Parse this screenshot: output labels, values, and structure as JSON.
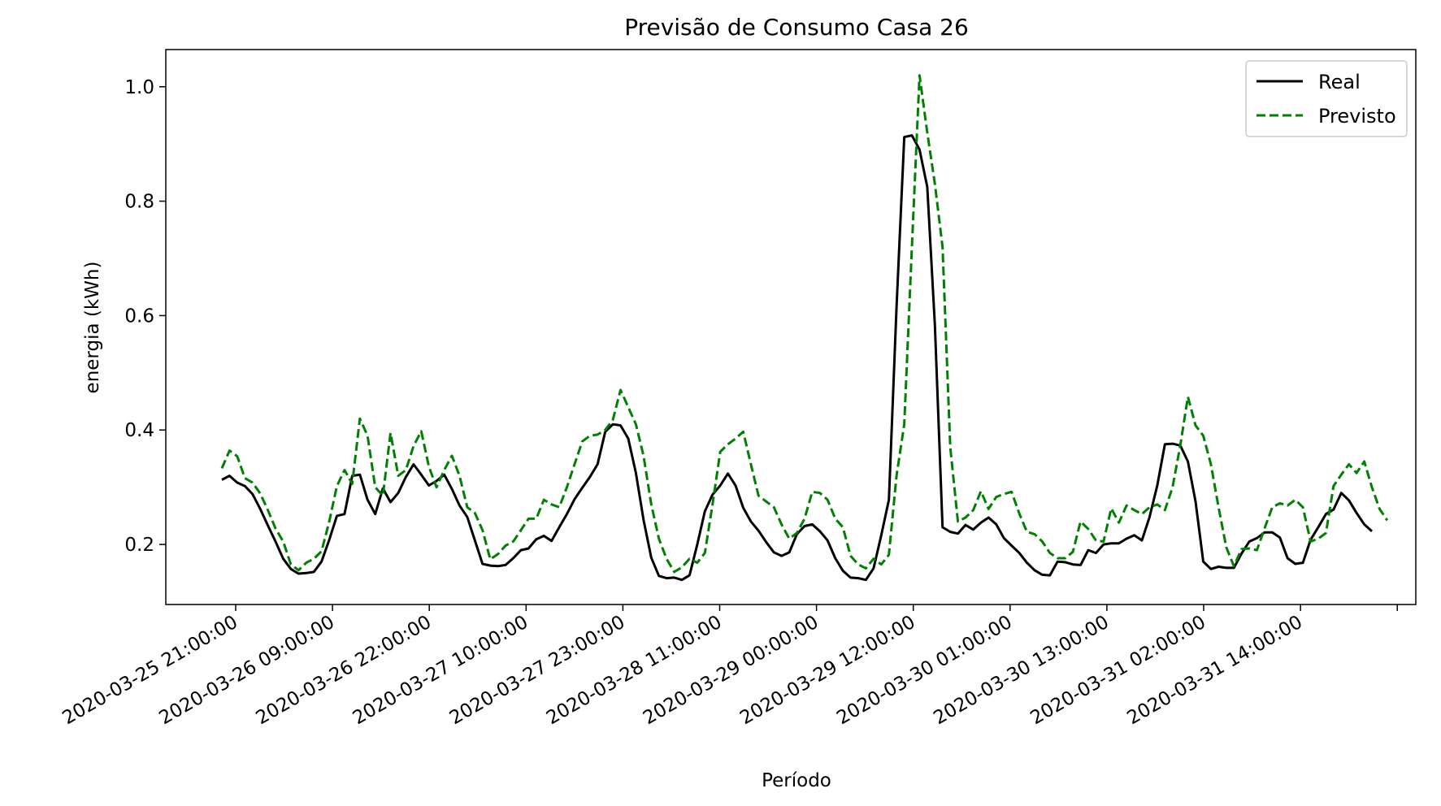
{
  "chart_data": {
    "type": "line",
    "title": "Previsão de Consumo Casa 26",
    "xlabel": "Período",
    "ylabel": "energia (kWh)",
    "ylim": [
      0.095,
      1.065
    ],
    "yticks": [
      0.2,
      0.4,
      0.6,
      0.8,
      1.0
    ],
    "ytick_labels": [
      "0.2",
      "0.4",
      "0.6",
      "0.8",
      "1.0"
    ],
    "xtick_labels": [
      "2020-03-25 21:00:00",
      "2020-03-26 09:00:00",
      "2020-03-26 22:00:00",
      "2020-03-27 10:00:00",
      "2020-03-27 23:00:00",
      "2020-03-28 11:00:00",
      "2020-03-29 00:00:00",
      "2020-03-29 12:00:00",
      "2020-03-30 01:00:00",
      "2020-03-30 13:00:00",
      "2020-03-31 02:00:00",
      "2020-03-31 14:00:00"
    ],
    "grid": false,
    "legend": "top-right",
    "series": [
      {
        "name": "Real",
        "color": "#000000",
        "style": "solid",
        "values": [
          0.313,
          0.32,
          0.308,
          0.302,
          0.288,
          0.262,
          0.233,
          0.205,
          0.175,
          0.157,
          0.149,
          0.15,
          0.152,
          0.17,
          0.208,
          0.25,
          0.253,
          0.32,
          0.322,
          0.278,
          0.253,
          0.298,
          0.274,
          0.29,
          0.318,
          0.34,
          0.322,
          0.303,
          0.311,
          0.322,
          0.297,
          0.268,
          0.248,
          0.207,
          0.166,
          0.163,
          0.162,
          0.164,
          0.176,
          0.19,
          0.193,
          0.209,
          0.215,
          0.206,
          0.23,
          0.253,
          0.279,
          0.299,
          0.318,
          0.34,
          0.397,
          0.41,
          0.408,
          0.385,
          0.325,
          0.243,
          0.177,
          0.145,
          0.141,
          0.142,
          0.138,
          0.146,
          0.2,
          0.258,
          0.287,
          0.303,
          0.324,
          0.303,
          0.264,
          0.24,
          0.224,
          0.204,
          0.186,
          0.18,
          0.186,
          0.218,
          0.232,
          0.235,
          0.223,
          0.207,
          0.176,
          0.154,
          0.142,
          0.141,
          0.138,
          0.158,
          0.216,
          0.278,
          0.615,
          0.912,
          0.915,
          0.89,
          0.825,
          0.583,
          0.23,
          0.222,
          0.219,
          0.234,
          0.226,
          0.238,
          0.247,
          0.235,
          0.211,
          0.198,
          0.185,
          0.168,
          0.155,
          0.147,
          0.146,
          0.17,
          0.169,
          0.165,
          0.164,
          0.19,
          0.185,
          0.2,
          0.202,
          0.202,
          0.21,
          0.216,
          0.207,
          0.248,
          0.303,
          0.375,
          0.376,
          0.373,
          0.345,
          0.275,
          0.17,
          0.157,
          0.161,
          0.159,
          0.159,
          0.184,
          0.205,
          0.211,
          0.221,
          0.221,
          0.212,
          0.176,
          0.166,
          0.168,
          0.208,
          0.23,
          0.253,
          0.261,
          0.29,
          0.277,
          0.255,
          0.235,
          0.223
        ]
      },
      {
        "name": "Previsto",
        "color": "#008000",
        "style": "dashed",
        "values": [
          0.333,
          0.364,
          0.354,
          0.316,
          0.308,
          0.289,
          0.26,
          0.228,
          0.205,
          0.165,
          0.155,
          0.168,
          0.175,
          0.188,
          0.24,
          0.302,
          0.33,
          0.306,
          0.42,
          0.39,
          0.3,
          0.285,
          0.395,
          0.32,
          0.33,
          0.372,
          0.398,
          0.336,
          0.3,
          0.33,
          0.355,
          0.32,
          0.265,
          0.255,
          0.225,
          0.174,
          0.183,
          0.198,
          0.205,
          0.225,
          0.245,
          0.245,
          0.278,
          0.27,
          0.265,
          0.3,
          0.34,
          0.38,
          0.39,
          0.392,
          0.4,
          0.418,
          0.47,
          0.44,
          0.41,
          0.355,
          0.27,
          0.21,
          0.175,
          0.152,
          0.16,
          0.175,
          0.168,
          0.185,
          0.27,
          0.362,
          0.375,
          0.385,
          0.397,
          0.34,
          0.285,
          0.275,
          0.265,
          0.235,
          0.21,
          0.22,
          0.245,
          0.292,
          0.29,
          0.278,
          0.245,
          0.23,
          0.18,
          0.165,
          0.158,
          0.175,
          0.165,
          0.182,
          0.32,
          0.41,
          0.72,
          1.02,
          0.92,
          0.83,
          0.72,
          0.37,
          0.24,
          0.247,
          0.26,
          0.293,
          0.262,
          0.283,
          0.288,
          0.292,
          0.254,
          0.222,
          0.218,
          0.205,
          0.185,
          0.176,
          0.176,
          0.187,
          0.24,
          0.227,
          0.207,
          0.205,
          0.263,
          0.238,
          0.268,
          0.26,
          0.253,
          0.265,
          0.27,
          0.26,
          0.3,
          0.373,
          0.458,
          0.408,
          0.39,
          0.34,
          0.265,
          0.195,
          0.162,
          0.192,
          0.193,
          0.19,
          0.228,
          0.265,
          0.272,
          0.268,
          0.278,
          0.265,
          0.205,
          0.21,
          0.22,
          0.302,
          0.322,
          0.34,
          0.325,
          0.345,
          0.3,
          0.262,
          0.242
        ]
      }
    ]
  }
}
